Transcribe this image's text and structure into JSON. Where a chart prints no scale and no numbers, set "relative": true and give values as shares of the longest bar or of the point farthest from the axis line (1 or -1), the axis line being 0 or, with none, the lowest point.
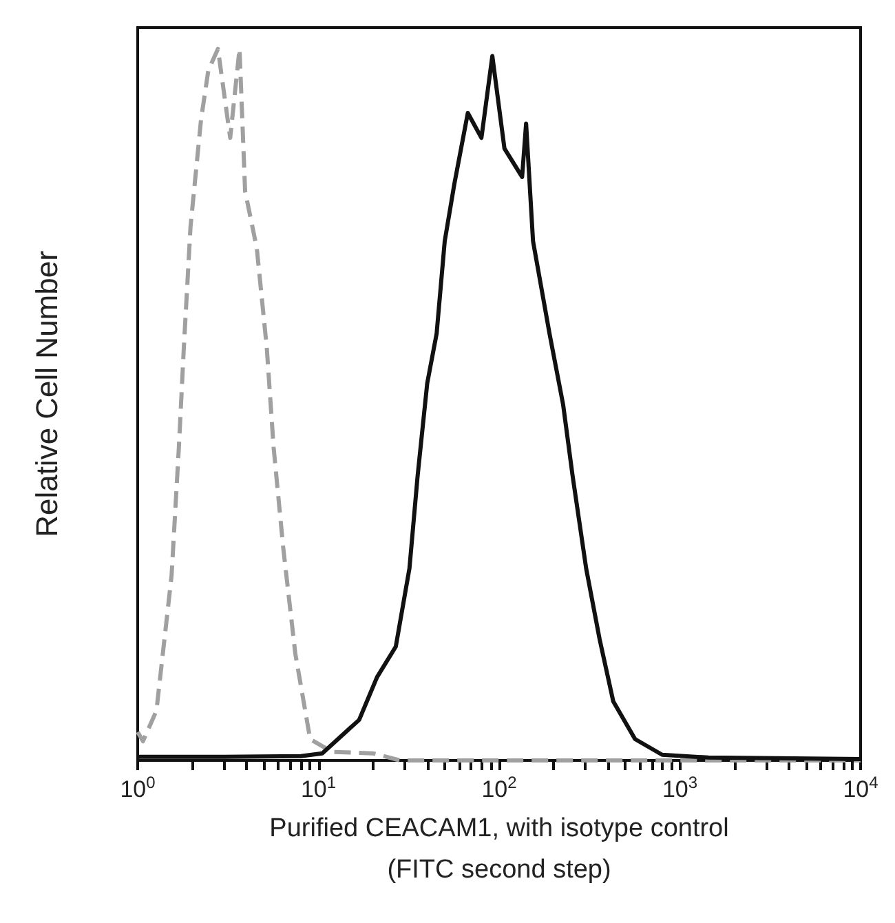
{
  "chart_data": {
    "type": "line",
    "relative": true,
    "log": "x",
    "xlabel": "Purified CEACAM1, with isotype control\n(FITC second step)",
    "ylabel": "Relative Cell Number",
    "xlim": [
      1,
      10000
    ],
    "xticks": [
      {
        "value": 1,
        "label": "10$^{0}$"
      },
      {
        "value": 2,
        "label": null
      },
      {
        "value": 3,
        "label": null
      },
      {
        "value": 4,
        "label": null
      },
      {
        "value": 5,
        "label": null
      },
      {
        "value": 6,
        "label": null
      },
      {
        "value": 7,
        "label": null
      },
      {
        "value": 8,
        "label": null
      },
      {
        "value": 9,
        "label": null
      },
      {
        "value": 10,
        "label": "10$^{1}$"
      },
      {
        "value": 20,
        "label": null
      },
      {
        "value": 30,
        "label": null
      },
      {
        "value": 40,
        "label": null
      },
      {
        "value": 50,
        "label": null
      },
      {
        "value": 60,
        "label": null
      },
      {
        "value": 70,
        "label": null
      },
      {
        "value": 80,
        "label": null
      },
      {
        "value": 90,
        "label": null
      },
      {
        "value": 100,
        "label": "10$^{2}$"
      },
      {
        "value": 200,
        "label": null
      },
      {
        "value": 300,
        "label": null
      },
      {
        "value": 400,
        "label": null
      },
      {
        "value": 500,
        "label": null
      },
      {
        "value": 600,
        "label": null
      },
      {
        "value": 700,
        "label": null
      },
      {
        "value": 800,
        "label": null
      },
      {
        "value": 900,
        "label": null
      },
      {
        "value": 1000,
        "label": "10$^{3}$"
      },
      {
        "value": 2000,
        "label": null
      },
      {
        "value": 3000,
        "label": null
      },
      {
        "value": 4000,
        "label": null
      },
      {
        "value": 5000,
        "label": null
      },
      {
        "value": 6000,
        "label": null
      },
      {
        "value": 7000,
        "label": null
      },
      {
        "value": 8000,
        "label": null
      },
      {
        "value": 9000,
        "label": null
      },
      {
        "value": 10000,
        "label": "10$^{4}$"
      }
    ],
    "grid": false,
    "marker": "none",
    "series": [
      {
        "color": "#a0a0a0",
        "line_style": "dashed",
        "x": [
          1.0,
          1.07,
          1.27,
          1.54,
          1.69,
          1.8,
          1.96,
          2.24,
          2.46,
          2.78,
          3.25,
          3.66,
          3.93,
          4.56,
          5.18,
          5.65,
          6.38,
          7.45,
          9.0,
          11.9,
          20,
          28.3,
          100,
          10000
        ],
        "values": [
          0.04,
          0.027,
          0.07,
          0.26,
          0.44,
          0.58,
          0.75,
          0.9,
          0.97,
          1.0,
          0.875,
          1.0,
          0.8,
          0.72,
          0.58,
          0.44,
          0.3,
          0.15,
          0.03,
          0.012,
          0.01,
          0.0,
          0.0,
          0.0
        ]
      },
      {
        "color": "#111111",
        "line_style": "solid",
        "x": [
          1.0,
          3,
          8,
          10.5,
          16.8,
          21.1,
          26.8,
          31.9,
          35.4,
          40,
          45.1,
          50,
          56.5,
          67.1,
          79.8,
          91.7,
          107,
          134,
          141,
          154,
          190,
          226,
          255,
          303,
          360,
          428,
          565,
          798,
          1439,
          10000
        ],
        "values": [
          0.005,
          0.005,
          0.006,
          0.01,
          0.057,
          0.117,
          0.16,
          0.27,
          0.4,
          0.53,
          0.6,
          0.73,
          0.81,
          0.91,
          0.875,
          0.99,
          0.86,
          0.82,
          0.895,
          0.73,
          0.6,
          0.5,
          0.4,
          0.27,
          0.17,
          0.083,
          0.03,
          0.008,
          0.004,
          0.002
        ]
      }
    ]
  }
}
